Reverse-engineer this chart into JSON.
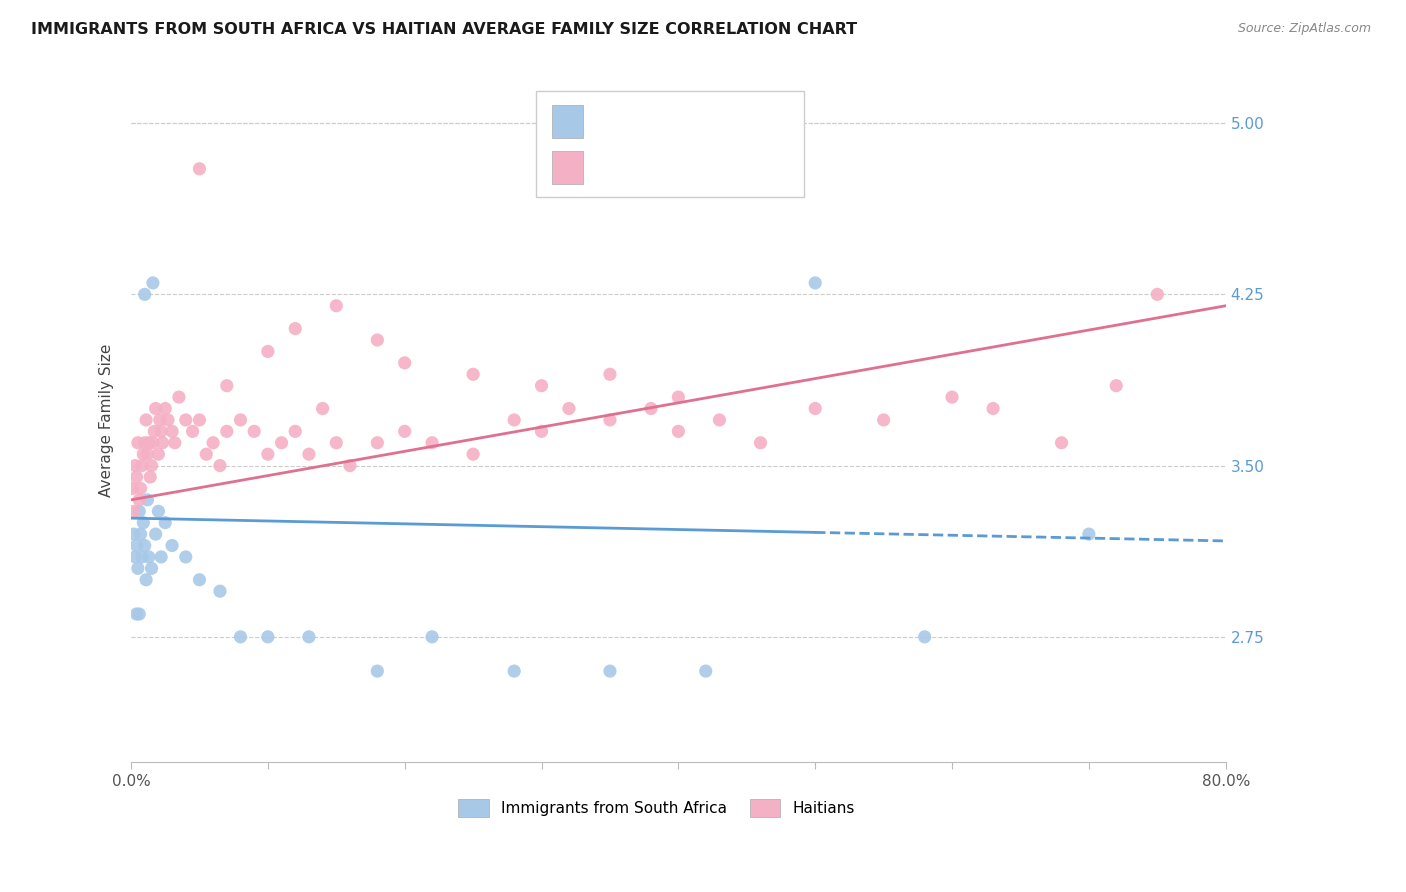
{
  "title": "IMMIGRANTS FROM SOUTH AFRICA VS HAITIAN AVERAGE FAMILY SIZE CORRELATION CHART",
  "source": "Source: ZipAtlas.com",
  "ylabel": "Average Family Size",
  "xlim": [
    0.0,
    80.0
  ],
  "ylim": [
    2.2,
    5.2
  ],
  "yticks": [
    2.75,
    3.5,
    4.25,
    5.0
  ],
  "xticks": [
    0.0,
    10.0,
    20.0,
    30.0,
    40.0,
    50.0,
    60.0,
    70.0,
    80.0
  ],
  "xtick_labels": [
    "0.0%",
    "",
    "",
    "",
    "",
    "",
    "",
    "",
    "80.0%"
  ],
  "legend_label1": "Immigrants from South Africa",
  "legend_label2": "Haitians",
  "color_blue": "#a8c8e8",
  "color_pink": "#f4b0c4",
  "color_blue_line": "#5b9bd5",
  "color_pink_line": "#e07090",
  "color_ytick": "#5b9bd5",
  "blue_x": [
    0.2,
    0.3,
    0.4,
    0.5,
    0.6,
    0.7,
    0.8,
    0.9,
    1.0,
    1.1,
    1.2,
    1.3,
    1.5,
    1.6,
    1.8,
    2.0,
    2.2,
    2.5,
    3.0,
    4.0,
    5.0,
    6.5,
    8.0,
    10.0,
    13.0,
    18.0,
    22.0,
    28.0,
    35.0,
    42.0,
    50.0,
    58.0,
    70.0,
    0.4,
    0.6,
    1.0
  ],
  "blue_y": [
    3.2,
    3.1,
    3.15,
    3.05,
    3.3,
    3.2,
    3.1,
    3.25,
    3.15,
    3.0,
    3.35,
    3.1,
    3.05,
    4.3,
    3.2,
    3.3,
    3.1,
    3.25,
    3.15,
    3.1,
    3.0,
    2.95,
    2.75,
    2.75,
    2.75,
    2.6,
    2.75,
    2.6,
    2.6,
    2.6,
    4.3,
    2.75,
    3.2,
    2.85,
    2.85,
    4.25
  ],
  "pink_x": [
    0.1,
    0.2,
    0.3,
    0.4,
    0.5,
    0.6,
    0.7,
    0.8,
    0.9,
    1.0,
    1.1,
    1.2,
    1.3,
    1.4,
    1.5,
    1.6,
    1.7,
    1.8,
    2.0,
    2.1,
    2.2,
    2.3,
    2.5,
    2.7,
    3.0,
    3.2,
    3.5,
    4.0,
    4.5,
    5.0,
    5.5,
    6.0,
    6.5,
    7.0,
    8.0,
    9.0,
    10.0,
    11.0,
    12.0,
    13.0,
    14.0,
    15.0,
    16.0,
    18.0,
    20.0,
    22.0,
    25.0,
    28.0,
    30.0,
    32.0,
    35.0,
    38.0,
    40.0,
    43.0,
    46.0,
    50.0,
    55.0,
    60.0,
    63.0,
    68.0,
    72.0,
    75.0,
    5.0,
    7.0,
    10.0,
    12.0,
    15.0,
    18.0,
    20.0,
    25.0,
    30.0,
    35.0,
    40.0
  ],
  "pink_y": [
    3.4,
    3.3,
    3.5,
    3.45,
    3.6,
    3.35,
    3.4,
    3.5,
    3.55,
    3.6,
    3.7,
    3.55,
    3.6,
    3.45,
    3.5,
    3.6,
    3.65,
    3.75,
    3.55,
    3.7,
    3.65,
    3.6,
    3.75,
    3.7,
    3.65,
    3.6,
    3.8,
    3.7,
    3.65,
    3.7,
    3.55,
    3.6,
    3.5,
    3.65,
    3.7,
    3.65,
    3.55,
    3.6,
    3.65,
    3.55,
    3.75,
    3.6,
    3.5,
    3.6,
    3.65,
    3.6,
    3.55,
    3.7,
    3.65,
    3.75,
    3.7,
    3.75,
    3.65,
    3.7,
    3.6,
    3.75,
    3.7,
    3.8,
    3.75,
    3.6,
    3.85,
    4.25,
    4.8,
    3.85,
    4.0,
    4.1,
    4.2,
    4.05,
    3.95,
    3.9,
    3.85,
    3.9,
    3.8
  ],
  "blue_line_x0": 0.0,
  "blue_line_y0": 3.27,
  "blue_line_x1": 80.0,
  "blue_line_y1": 3.17,
  "blue_line_solid_end": 50.0,
  "pink_line_x0": 0.0,
  "pink_line_y0": 3.35,
  "pink_line_x1": 80.0,
  "pink_line_y1": 4.2
}
